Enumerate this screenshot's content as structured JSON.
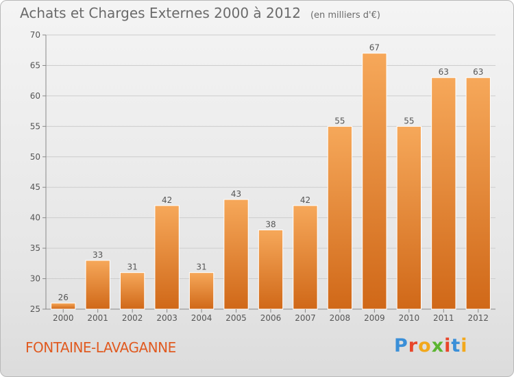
{
  "header": {
    "title": "Achats et Charges Externes 2000 à 2012",
    "unit": "(en milliers d'€)"
  },
  "footer": {
    "commune": "FONTAINE-LAVAGANNE",
    "brand_letters": [
      "P",
      "r",
      "o",
      "x",
      "i",
      "t",
      "i"
    ],
    "brand_colors": [
      "#3a8fd8",
      "#e8462a",
      "#f2a81c",
      "#5bb531",
      "#e8462a",
      "#3a8fd8",
      "#f2a81c"
    ]
  },
  "colors": {
    "bar_top": "#f6a85a",
    "bar_bottom": "#d06818",
    "grid": "#cccccc",
    "axis": "#888888"
  },
  "chart_data": {
    "type": "bar",
    "title": "Achats et Charges Externes 2000 à 2012",
    "subtitle": "(en milliers d'€)",
    "categories": [
      "2000",
      "2001",
      "2002",
      "2003",
      "2004",
      "2005",
      "2006",
      "2007",
      "2008",
      "2009",
      "2010",
      "2011",
      "2012"
    ],
    "values": [
      26,
      33,
      31,
      42,
      31,
      43,
      38,
      42,
      55,
      67,
      55,
      63,
      63
    ],
    "ylim": [
      25,
      70
    ],
    "yticks": [
      25,
      30,
      35,
      40,
      45,
      50,
      55,
      60,
      65,
      70
    ],
    "grid": true,
    "xlabel": "",
    "ylabel": ""
  }
}
